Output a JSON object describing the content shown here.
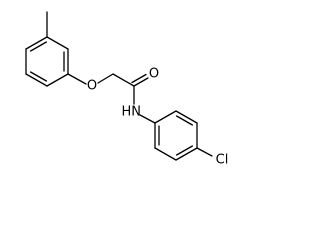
{
  "atoms": {
    "ether_oxygen": "O",
    "carbonyl_oxygen": "O",
    "amine": "HN",
    "chlorine": "Cl"
  }
}
